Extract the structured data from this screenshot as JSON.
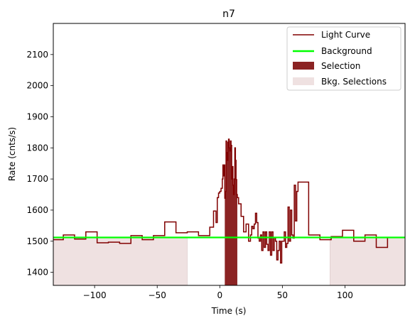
{
  "chart_data": {
    "type": "line",
    "title": "n7",
    "xlabel": "Time (s)",
    "ylabel": "Rate (cnts/s)",
    "xlim": [
      -133,
      148
    ],
    "ylim": [
      1358,
      2200
    ],
    "xticks": [
      -100,
      -50,
      0,
      50,
      100
    ],
    "xtick_labels": [
      "−100",
      "−50",
      "0",
      "50",
      "100"
    ],
    "yticks": [
      1400,
      1500,
      1600,
      1700,
      1800,
      1900,
      2000,
      2100
    ],
    "ytick_labels": [
      "1400",
      "1500",
      "1600",
      "1700",
      "1800",
      "1900",
      "2000",
      "2100"
    ],
    "grid": false,
    "legend_position": "top-right",
    "legend": {
      "light_curve": "Light Curve",
      "background": "Background",
      "selection": "Selection",
      "bkg_selections": "Bkg. Selections"
    },
    "colors": {
      "light_curve": "#800000",
      "background": "#00ff00",
      "selection": "#8b2323",
      "bkg_selections": "#efe1e1"
    },
    "background_level": 1512,
    "selection_interval": [
      4,
      14
    ],
    "bkg_selection_intervals": [
      [
        -133,
        -26
      ],
      [
        88,
        148
      ]
    ],
    "light_curve": {
      "x": [
        -133,
        -125,
        -116,
        -107,
        -98,
        -89,
        -80,
        -71,
        -62,
        -53,
        -44,
        -35,
        -26,
        -17,
        -8,
        -5,
        -3,
        -2,
        -1,
        0,
        1,
        2,
        2.5,
        3,
        3.5,
        4,
        4.5,
        5,
        5.5,
        6,
        6.5,
        7,
        7.5,
        8,
        8.5,
        9,
        9.5,
        10,
        10.5,
        11,
        11.5,
        12,
        12.5,
        13,
        13.5,
        14,
        15,
        17,
        19,
        21,
        23,
        24.5,
        25.5,
        26.5,
        27.5,
        28.5,
        29.5,
        30.5,
        31.5,
        32.5,
        33.5,
        34.5,
        35.5,
        36.5,
        37.5,
        38.5,
        39.5,
        40.5,
        41.5,
        42.5,
        43.5,
        44.5,
        45.5,
        46.5,
        47.5,
        48.5,
        49.5,
        50.5,
        51.5,
        52.5,
        53.5,
        54.5,
        55.5,
        56.5,
        57.5,
        58.5,
        59.5,
        60.5,
        61.5,
        62.5,
        71,
        80,
        89,
        98,
        107,
        116,
        125,
        134,
        143,
        148
      ],
      "y": [
        1505,
        1520,
        1507,
        1530,
        1495,
        1497,
        1493,
        1518,
        1505,
        1518,
        1562,
        1527,
        1530,
        1518,
        1545,
        1597,
        1560,
        1640,
        1655,
        1660,
        1670,
        1700,
        1745,
        1710,
        1745,
        1638,
        1660,
        1822,
        1785,
        1760,
        1818,
        1828,
        1800,
        1790,
        1822,
        1808,
        1700,
        1740,
        1680,
        1650,
        1700,
        1800,
        1760,
        1698,
        1650,
        1640,
        1620,
        1580,
        1530,
        1555,
        1500,
        1520,
        1548,
        1540,
        1555,
        1590,
        1560,
        1510,
        1500,
        1520,
        1470,
        1530,
        1480,
        1530,
        1490,
        1470,
        1530,
        1455,
        1530,
        1470,
        1512,
        1500,
        1440,
        1470,
        1500,
        1430,
        1500,
        1500,
        1530,
        1480,
        1493,
        1610,
        1500,
        1600,
        1520,
        1510,
        1680,
        1565,
        1660,
        1690,
        1520,
        1505,
        1515,
        1535,
        1500,
        1520,
        1480,
        1512,
        1512,
        1512
      ]
    }
  }
}
